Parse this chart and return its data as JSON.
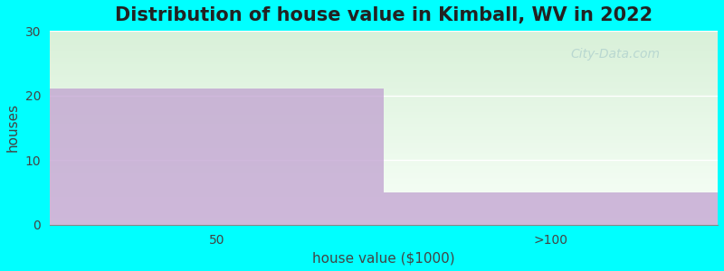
{
  "title": "Distribution of house value in Kimball, WV in 2022",
  "xlabel": "house value ($1000)",
  "ylabel": "houses",
  "categories": [
    "50",
    ">100"
  ],
  "values": [
    21,
    5
  ],
  "bar_color": "#c0a0d0",
  "bar_alpha": 0.75,
  "ylim": [
    0,
    30
  ],
  "yticks": [
    0,
    10,
    20,
    30
  ],
  "xlim": [
    0,
    2
  ],
  "background_color": "#00FFFF",
  "bg_color_top": "#d8f0d8",
  "bg_color_bottom": "#f8fff8",
  "title_fontsize": 15,
  "axis_label_fontsize": 11,
  "tick_fontsize": 10,
  "watermark": "City-Data.com"
}
